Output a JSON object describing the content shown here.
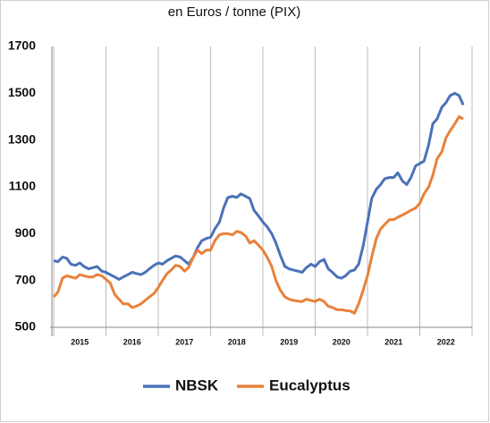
{
  "chart_data": {
    "type": "line",
    "title": "en Euros / tonne (PIX)",
    "x": [
      2015.0,
      2015.08,
      2015.17,
      2015.25,
      2015.33,
      2015.42,
      2015.5,
      2015.58,
      2015.67,
      2015.75,
      2015.83,
      2015.92,
      2016.0,
      2016.08,
      2016.17,
      2016.25,
      2016.33,
      2016.42,
      2016.5,
      2016.58,
      2016.67,
      2016.75,
      2016.83,
      2016.92,
      2017.0,
      2017.08,
      2017.17,
      2017.25,
      2017.33,
      2017.42,
      2017.5,
      2017.58,
      2017.67,
      2017.75,
      2017.83,
      2017.92,
      2018.0,
      2018.08,
      2018.17,
      2018.25,
      2018.33,
      2018.42,
      2018.5,
      2018.58,
      2018.67,
      2018.75,
      2018.83,
      2018.92,
      2019.0,
      2019.08,
      2019.17,
      2019.25,
      2019.33,
      2019.42,
      2019.5,
      2019.58,
      2019.67,
      2019.75,
      2019.83,
      2019.92,
      2020.0,
      2020.08,
      2020.17,
      2020.25,
      2020.33,
      2020.42,
      2020.5,
      2020.58,
      2020.67,
      2020.75,
      2020.83,
      2020.92,
      2021.0,
      2021.08,
      2021.17,
      2021.25,
      2021.33,
      2021.42,
      2021.5,
      2021.58,
      2021.67,
      2021.75,
      2021.83,
      2021.92,
      2022.0,
      2022.08,
      2022.17,
      2022.25,
      2022.33,
      2022.42,
      2022.5,
      2022.58,
      2022.67,
      2022.75,
      2022.83
    ],
    "series": [
      {
        "name": "NBSK",
        "color": "#4a72b8",
        "values": [
          785,
          780,
          800,
          795,
          770,
          765,
          775,
          760,
          750,
          755,
          760,
          740,
          735,
          725,
          715,
          705,
          715,
          725,
          735,
          730,
          725,
          735,
          750,
          765,
          775,
          770,
          785,
          795,
          805,
          800,
          785,
          770,
          800,
          840,
          870,
          880,
          885,
          920,
          950,
          1010,
          1055,
          1060,
          1055,
          1070,
          1060,
          1050,
          1000,
          975,
          950,
          930,
          900,
          860,
          810,
          760,
          750,
          745,
          740,
          735,
          755,
          770,
          760,
          780,
          790,
          750,
          735,
          715,
          710,
          720,
          740,
          745,
          770,
          850,
          950,
          1050,
          1090,
          1110,
          1135,
          1140,
          1140,
          1160,
          1125,
          1110,
          1140,
          1190,
          1200,
          1210,
          1280,
          1370,
          1390,
          1440,
          1460,
          1490,
          1500,
          1490,
          1450
        ]
      },
      {
        "name": "Eucalyptus",
        "color": "#e8813a",
        "values": [
          630,
          650,
          710,
          720,
          715,
          710,
          725,
          720,
          715,
          715,
          725,
          720,
          705,
          690,
          640,
          620,
          600,
          600,
          585,
          590,
          600,
          615,
          630,
          645,
          670,
          700,
          730,
          745,
          765,
          760,
          740,
          755,
          800,
          830,
          815,
          830,
          830,
          870,
          895,
          900,
          900,
          895,
          910,
          905,
          890,
          860,
          870,
          850,
          830,
          800,
          760,
          700,
          660,
          630,
          620,
          615,
          612,
          610,
          620,
          615,
          610,
          620,
          610,
          590,
          585,
          575,
          575,
          572,
          570,
          560,
          600,
          660,
          720,
          800,
          880,
          920,
          940,
          960,
          960,
          970,
          980,
          990,
          1000,
          1010,
          1030,
          1070,
          1100,
          1150,
          1220,
          1250,
          1310,
          1340,
          1370,
          1400,
          1390
        ]
      }
    ],
    "xlim": [
      2015,
      2023
    ],
    "xticks": [
      {
        "value": 2015.5,
        "label": "2015"
      },
      {
        "value": 2016.5,
        "label": "2016"
      },
      {
        "value": 2017.5,
        "label": "2017"
      },
      {
        "value": 2018.5,
        "label": "2018"
      },
      {
        "value": 2019.5,
        "label": "2019"
      },
      {
        "value": 2020.5,
        "label": "2020"
      },
      {
        "value": 2021.5,
        "label": "2021"
      },
      {
        "value": 2022.5,
        "label": "2022"
      }
    ],
    "xgrid": [
      2015,
      2016,
      2017,
      2018,
      2019,
      2020,
      2021,
      2022,
      2023
    ],
    "ylim": [
      500,
      1700
    ],
    "yticks": [
      500,
      700,
      900,
      1100,
      1300,
      1500,
      1700
    ],
    "legend": "bottom"
  }
}
